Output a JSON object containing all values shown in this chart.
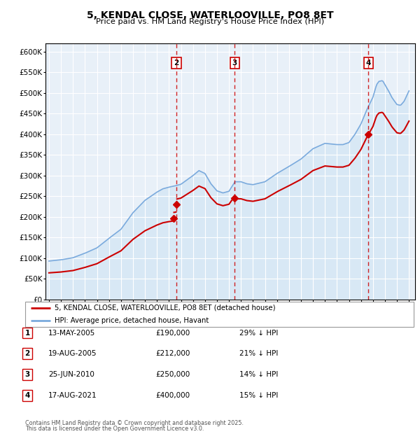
{
  "title": "5, KENDAL CLOSE, WATERLOOVILLE, PO8 8ET",
  "subtitle": "Price paid vs. HM Land Registry's House Price Index (HPI)",
  "legend_line1": "5, KENDAL CLOSE, WATERLOOVILLE, PO8 8ET (detached house)",
  "legend_line2": "HPI: Average price, detached house, Havant",
  "footer1": "Contains HM Land Registry data © Crown copyright and database right 2025.",
  "footer2": "This data is licensed under the Open Government Licence v3.0.",
  "hpi_color": "#7aaadd",
  "hpi_fill": "#d8e8f5",
  "price_color": "#cc0000",
  "marker_color": "#cc0000",
  "vline_color": "#cc0000",
  "background_color": "#ffffff",
  "plot_bg_color": "#e8f0f8",
  "grid_color": "#ffffff",
  "ylim": [
    0,
    620000
  ],
  "yticks": [
    0,
    50000,
    100000,
    150000,
    200000,
    250000,
    300000,
    350000,
    400000,
    450000,
    500000,
    550000,
    600000
  ],
  "ytick_labels": [
    "£0",
    "£50K",
    "£100K",
    "£150K",
    "£200K",
    "£250K",
    "£300K",
    "£350K",
    "£400K",
    "£450K",
    "£500K",
    "£550K",
    "£600K"
  ],
  "transactions": [
    {
      "label": "1",
      "date": "13-MAY-2005",
      "price": 190000,
      "x": 2005.36
    },
    {
      "label": "2",
      "date": "19-AUG-2005",
      "price": 212000,
      "x": 2005.63
    },
    {
      "label": "3",
      "date": "25-JUN-2010",
      "price": 250000,
      "x": 2010.48
    },
    {
      "label": "4",
      "date": "17-AUG-2021",
      "price": 400000,
      "x": 2021.63
    }
  ],
  "table_rows": [
    {
      "num": "1",
      "date": "13-MAY-2005",
      "price": "£190,000",
      "pct": "29% ↓ HPI"
    },
    {
      "num": "2",
      "date": "19-AUG-2005",
      "price": "£212,000",
      "pct": "21% ↓ HPI"
    },
    {
      "num": "3",
      "date": "25-JUN-2010",
      "price": "£250,000",
      "pct": "14% ↓ HPI"
    },
    {
      "num": "4",
      "date": "17-AUG-2021",
      "price": "£400,000",
      "pct": "15% ↓ HPI"
    }
  ],
  "vlines_labels": [
    "2",
    "3",
    "4"
  ],
  "vlines_x": [
    2005.63,
    2010.48,
    2021.63
  ]
}
